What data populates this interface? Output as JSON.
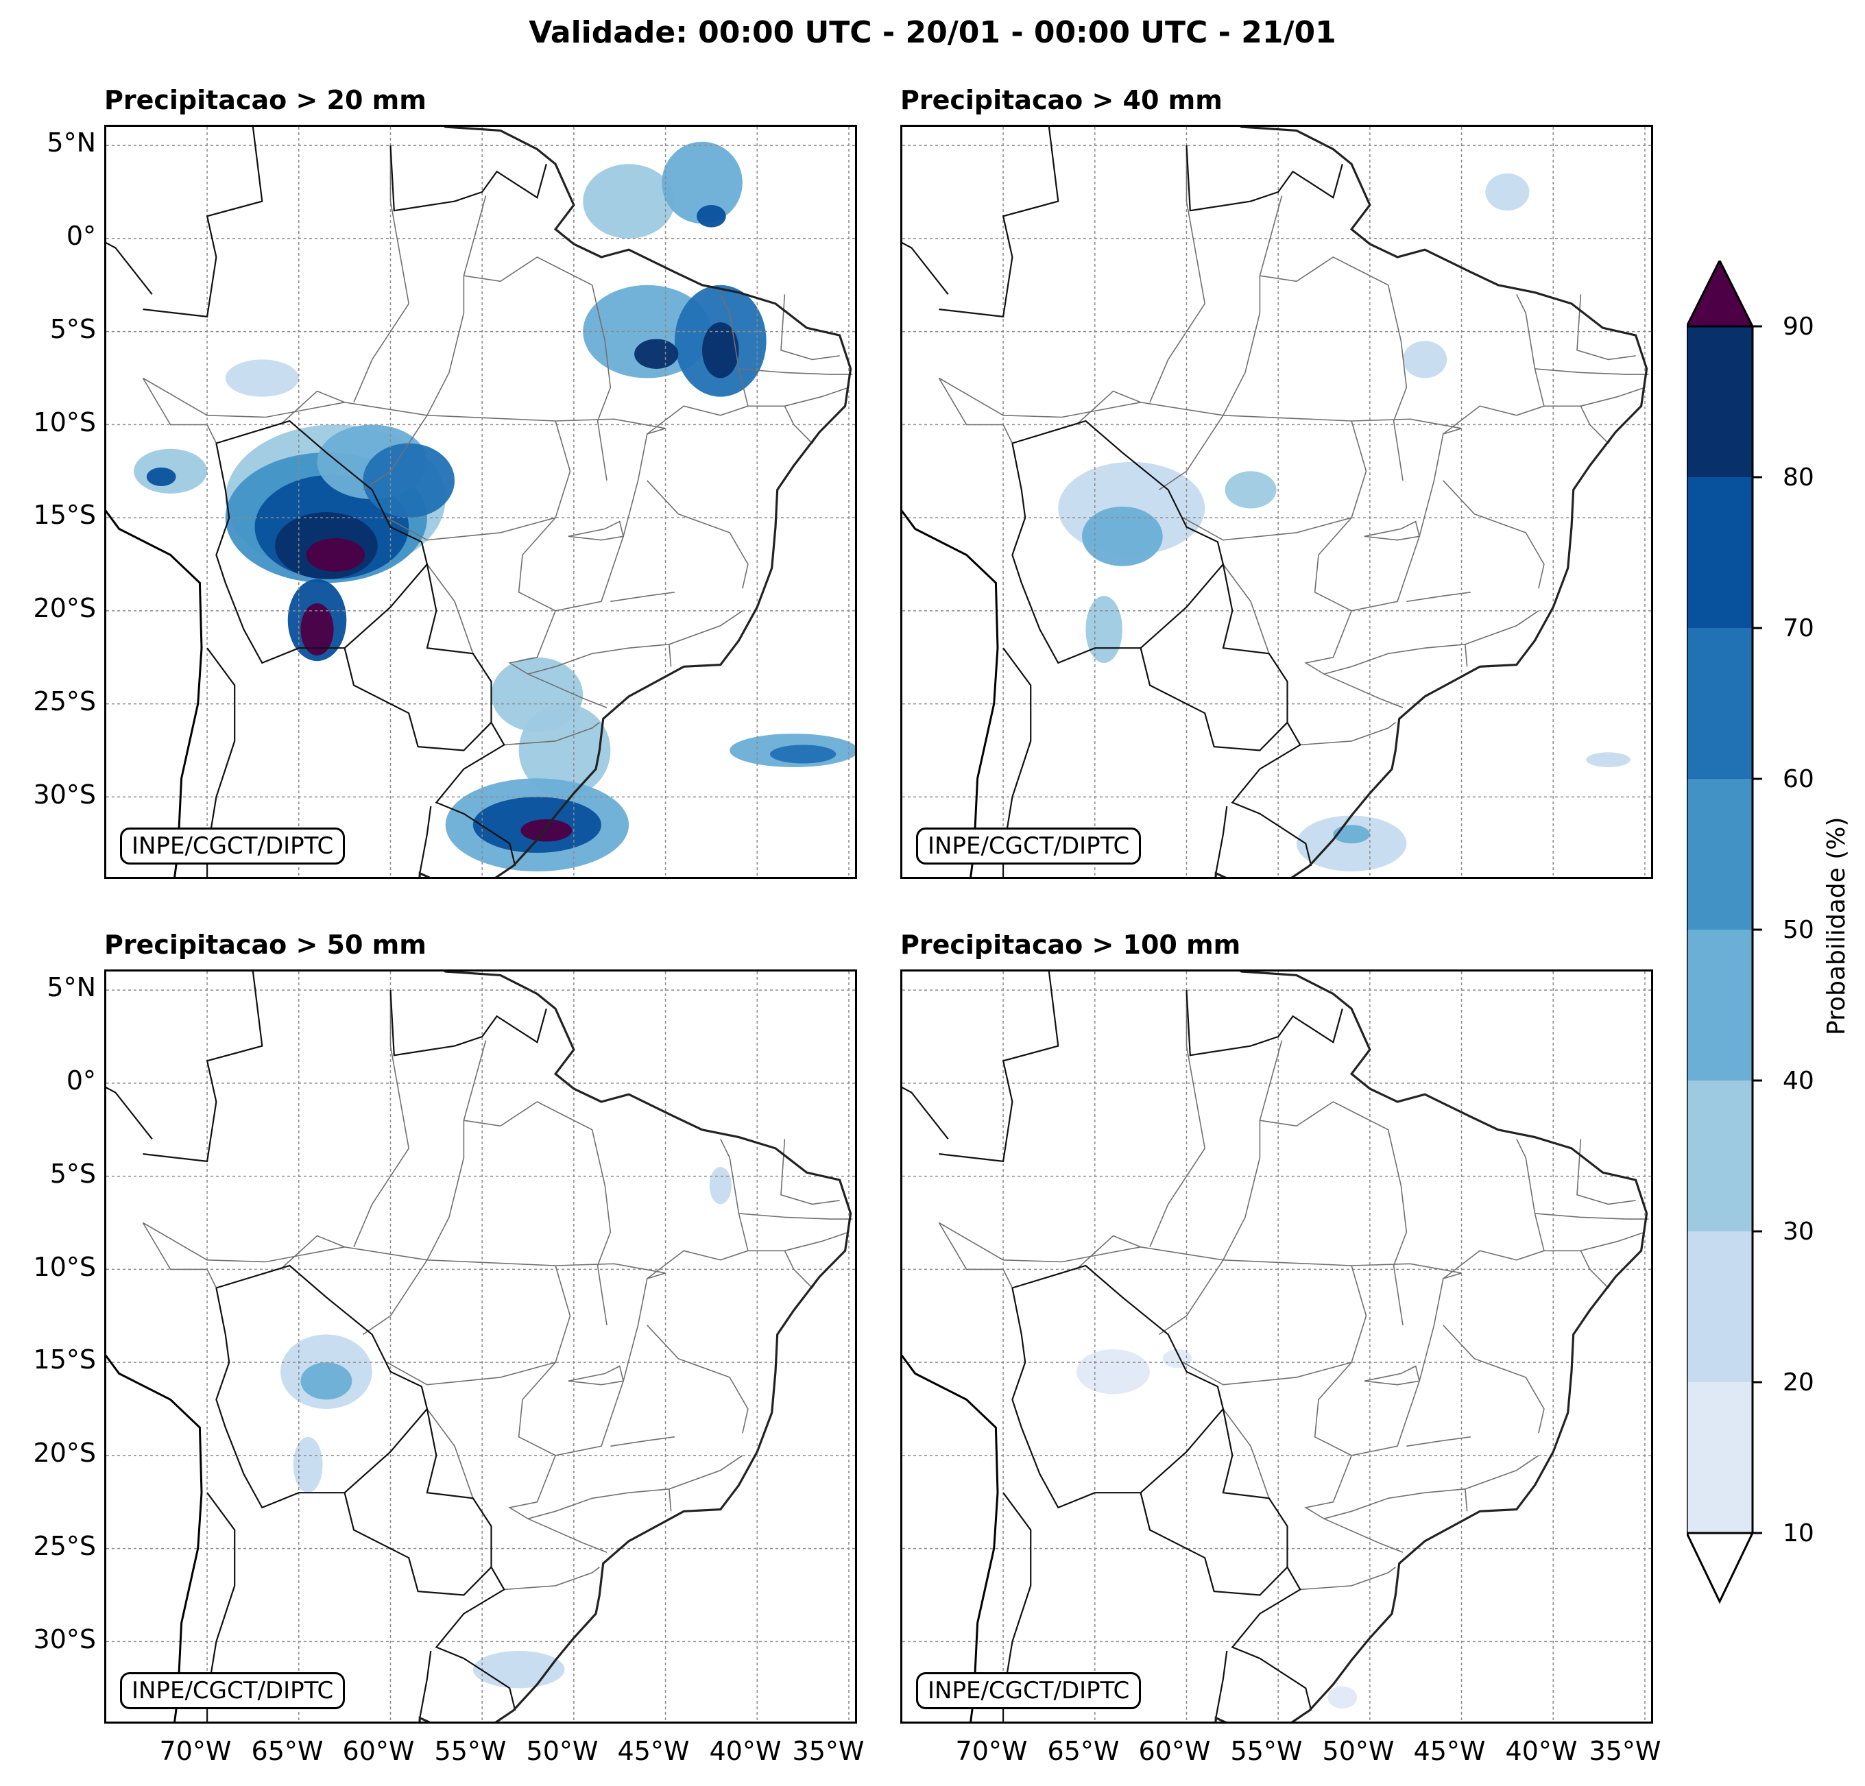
{
  "title": "Validade: 00:00 UTC - 20/01 - 00:00 UTC - 21/01",
  "panels": [
    {
      "title": "Precipitacao > 20 mm",
      "credit": "INPE/CGCT/DIPTC"
    },
    {
      "title": "Precipitacao > 40 mm",
      "credit": "INPE/CGCT/DIPTC"
    },
    {
      "title": "Precipitacao > 50 mm",
      "credit": "INPE/CGCT/DIPTC"
    },
    {
      "title": "Precipitacao > 100 mm",
      "credit": "INPE/CGCT/DIPTC"
    }
  ],
  "lat_labels": [
    "5°N",
    "0°",
    "5°S",
    "10°S",
    "15°S",
    "20°S",
    "25°S",
    "30°S"
  ],
  "lon_labels": [
    "70°W",
    "65°W",
    "60°W",
    "55°W",
    "50°W",
    "45°W",
    "40°W",
    "35°W"
  ],
  "colorbar": {
    "label": "Probabilidade (%)",
    "ticks": [
      "10",
      "20",
      "30",
      "40",
      "50",
      "60",
      "70",
      "80",
      "90"
    ],
    "colors": [
      "#dfe9f5",
      "#c6dbef",
      "#9ecae1",
      "#6baed6",
      "#4292c6",
      "#2171b5",
      "#08519c",
      "#08306b"
    ],
    "extend_max_color": "#4d0045",
    "extend_min_color": "#ffffff"
  }
}
